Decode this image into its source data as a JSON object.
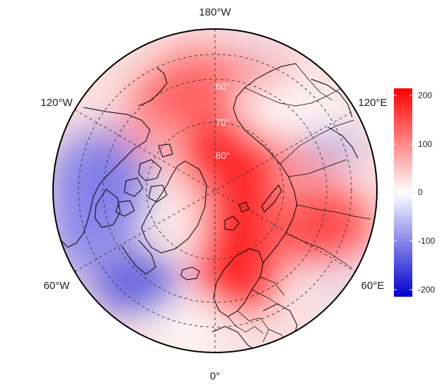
{
  "map": {
    "projection": "north-polar-stereographic",
    "colors": {
      "high": "#ff0000",
      "mid": "#ffffff",
      "low": "#0000cd",
      "graticule": "#333333",
      "coast": "#000000",
      "border": "#000000"
    },
    "longitude_labels": {
      "top": "180°W",
      "upper_left": "120°W",
      "upper_right": "120°E",
      "lower_left": "60°W",
      "lower_right": "60°E",
      "bottom": "0°"
    },
    "latitude_labels": [
      "60°",
      "70°",
      "80°"
    ]
  },
  "colorbar": {
    "range": [
      -215,
      215
    ],
    "ticks": [
      "200",
      "100",
      "0",
      "-100",
      "-200"
    ]
  }
}
